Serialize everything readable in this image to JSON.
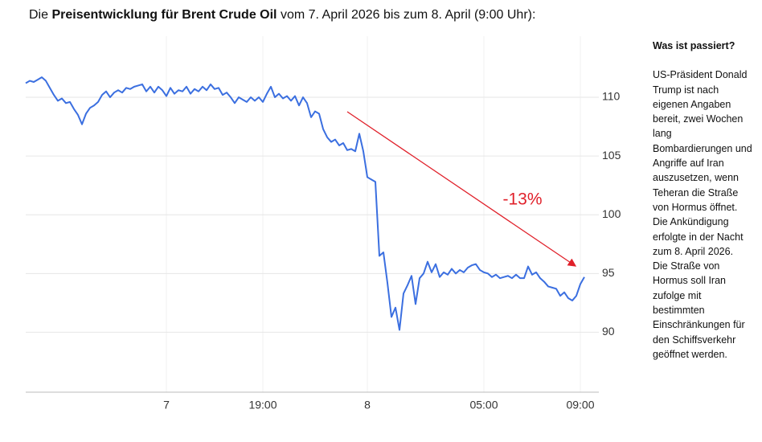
{
  "chart_data": {
    "type": "line",
    "title_parts": [
      "Die ",
      "Preisentwicklung für Brent Crude Oil",
      " vom 7. April 2026 bis zum 8. April (9:00 Uhr):"
    ],
    "annotation": "-13%",
    "categories": [
      null,
      null,
      null,
      null,
      null,
      null,
      null,
      null,
      null,
      null,
      null,
      null,
      null,
      null,
      null,
      null,
      null,
      null,
      null,
      null,
      null,
      null,
      null,
      null,
      null,
      null,
      null,
      null,
      null,
      null,
      null,
      null,
      null,
      null,
      null,
      "7",
      null,
      null,
      null,
      null,
      null,
      null,
      null,
      null,
      null,
      null,
      null,
      null,
      null,
      null,
      null,
      null,
      null,
      null,
      null,
      null,
      null,
      null,
      null,
      "19:00",
      null,
      null,
      null,
      null,
      null,
      null,
      null,
      null,
      null,
      null,
      null,
      null,
      null,
      null,
      null,
      null,
      null,
      null,
      null,
      null,
      null,
      null,
      null,
      null,
      null,
      "8",
      null,
      null,
      null,
      null,
      null,
      null,
      null,
      null,
      null,
      null,
      null,
      null,
      null,
      null,
      null,
      null,
      null,
      null,
      null,
      null,
      null,
      null,
      null,
      null,
      null,
      null,
      null,
      null,
      "05:00",
      null,
      null,
      null,
      null,
      null,
      null,
      null,
      null,
      null,
      null,
      null,
      null,
      null,
      null,
      null,
      null,
      null,
      null,
      null,
      null,
      null,
      null,
      null,
      "09:00",
      null
    ],
    "series": [
      {
        "name": "Brent Crude Oil",
        "color": "#3b6fe0",
        "values": [
          111.2,
          111.4,
          111.3,
          111.5,
          111.7,
          111.4,
          110.8,
          110.2,
          109.7,
          109.9,
          109.5,
          109.6,
          109.0,
          108.5,
          107.7,
          108.6,
          109.1,
          109.3,
          109.6,
          110.2,
          110.5,
          110.0,
          110.4,
          110.6,
          110.4,
          110.8,
          110.7,
          110.9,
          111.0,
          111.1,
          110.5,
          110.9,
          110.4,
          110.9,
          110.6,
          110.1,
          110.8,
          110.3,
          110.6,
          110.5,
          110.9,
          110.3,
          110.7,
          110.5,
          110.9,
          110.6,
          111.1,
          110.7,
          110.8,
          110.2,
          110.4,
          110.0,
          109.5,
          110.0,
          109.8,
          109.6,
          110.0,
          109.7,
          110.0,
          109.6,
          110.3,
          110.9,
          110.0,
          110.3,
          109.9,
          110.1,
          109.7,
          110.1,
          109.3,
          110.0,
          109.5,
          108.3,
          108.8,
          108.6,
          107.3,
          106.6,
          106.2,
          106.4,
          105.9,
          106.1,
          105.5,
          105.6,
          105.4,
          106.9,
          105.4,
          103.2,
          103.0,
          102.8,
          96.5,
          96.8,
          94.2,
          91.3,
          92.1,
          90.2,
          93.3,
          94.0,
          94.8,
          92.4,
          94.6,
          95.0,
          96.0,
          95.1,
          95.8,
          94.7,
          95.1,
          94.9,
          95.4,
          95.0,
          95.3,
          95.1,
          95.5,
          95.7,
          95.8,
          95.3,
          95.1,
          95.0,
          94.7,
          94.9,
          94.6,
          94.7,
          94.8,
          94.6,
          94.9,
          94.6,
          94.6,
          95.6,
          94.9,
          95.1,
          94.6,
          94.3,
          93.9,
          93.8,
          93.7,
          93.1,
          93.4,
          92.9,
          92.7,
          93.1,
          94.1,
          94.7
        ]
      }
    ],
    "ylim": [
      84.9,
      115.2
    ],
    "yticks": [
      90,
      95,
      100,
      105,
      110
    ],
    "grid": true
  },
  "sidebar": {
    "heading": "Was ist passiert?",
    "paragraphs": [
      "US-Präsident Donald Trump ist nach eigenen Angaben bereit, zwei Wochen lang Bombardierungen und Angriffe auf Iran auszusetzen, wenn Teheran die Straße von Hormus öffnet. Die Ankündigung erfolgte in der Nacht zum 8. April 2026.",
      "Die Straße von Hormus soll Iran zufolge mit bestimmten Einschränkungen für den Schiffsverkehr geöffnet werden."
    ]
  }
}
